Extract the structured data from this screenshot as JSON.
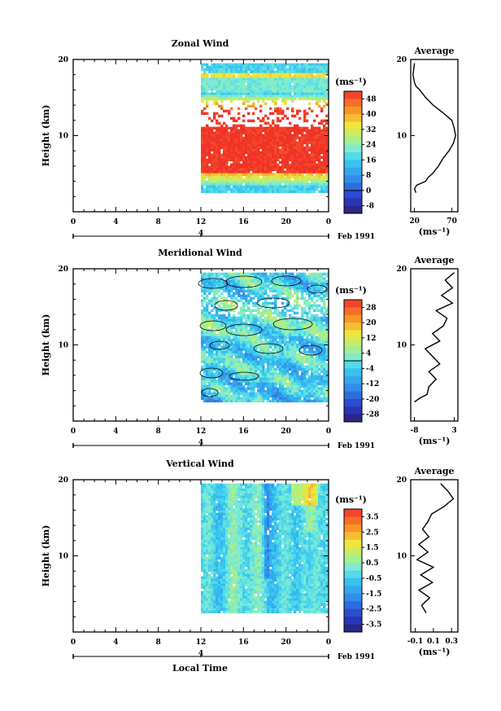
{
  "figure": {
    "xlabel": "Local Time",
    "date_label": "Feb 1991",
    "average_title": "Average"
  },
  "chart_data": [
    {
      "type": "heatmap",
      "title": "Zonal Wind",
      "ylabel": "Height (km)",
      "ylim": [
        0,
        20
      ],
      "yticks": [
        "20",
        "10"
      ],
      "xticks": [
        "0",
        "4",
        "8",
        "12",
        "16",
        "20",
        "0"
      ],
      "day_marker": "4",
      "unit": "(ms⁻¹)",
      "colorbar_ticks": [
        "48",
        "40",
        "32",
        "24",
        "16",
        "8",
        "0",
        "-8"
      ],
      "colorbar_range": [
        -12,
        52
      ],
      "data_start_hour": 12,
      "data_end_hour": 24,
      "height_range_km": [
        2.5,
        19.5
      ],
      "profile": {
        "title": "Average",
        "xlim": [
          15,
          78
        ],
        "xticks": [
          "20",
          "70"
        ],
        "xlabel": "(ms⁻¹)",
        "height": [
          2.5,
          3,
          3.5,
          4,
          4.5,
          5,
          6,
          7,
          8,
          9,
          10,
          11,
          12,
          13,
          14,
          15,
          16,
          16.5,
          17,
          18,
          19.5
        ],
        "value": [
          22,
          20,
          23,
          35,
          38,
          44,
          52,
          58,
          66,
          72,
          75,
          73,
          70,
          58,
          45,
          35,
          27,
          22,
          20,
          18,
          20
        ]
      }
    },
    {
      "type": "heatmap",
      "title": "Meridional Wind",
      "ylabel": "Height (km)",
      "ylim": [
        0,
        20
      ],
      "yticks": [
        "20",
        "10"
      ],
      "xticks": [
        "0",
        "4",
        "8",
        "12",
        "16",
        "20",
        "0"
      ],
      "day_marker": "4",
      "unit": "(ms⁻¹)",
      "colorbar_ticks": [
        "28",
        "20",
        "12",
        "4",
        "-4",
        "-12",
        "-20",
        "-28"
      ],
      "colorbar_range": [
        -32,
        32
      ],
      "data_start_hour": 12,
      "data_end_hour": 24,
      "height_range_km": [
        2.5,
        19.5
      ],
      "profile": {
        "title": "Average",
        "xlim": [
          -9,
          4
        ],
        "xticks": [
          "-8",
          "3"
        ],
        "xlabel": "(ms⁻¹)",
        "height": [
          2.5,
          3,
          3.5,
          4.5,
          5.5,
          6.5,
          7.5,
          8.5,
          9.5,
          10.5,
          11.5,
          12.5,
          13.5,
          14.5,
          15.5,
          16.5,
          17.5,
          18.5,
          19.5
        ],
        "value": [
          -8,
          -6.5,
          -4.5,
          -4,
          -2,
          -4,
          -1,
          -3,
          -5,
          -1,
          -3,
          0,
          1,
          -2,
          2.5,
          -0.5,
          2.5,
          0.5,
          3
        ]
      }
    },
    {
      "type": "heatmap",
      "title": "Vertical Wind",
      "ylabel": "Height (km)",
      "ylim": [
        0,
        20
      ],
      "yticks": [
        "20",
        "10"
      ],
      "xticks": [
        "0",
        "4",
        "8",
        "12",
        "16",
        "20",
        "0"
      ],
      "day_marker": "4",
      "unit": "(ms⁻¹)",
      "colorbar_ticks": [
        "3.5",
        "2.5",
        "1.5",
        "0.5",
        "-0.5",
        "-1.5",
        "-2.5",
        "-3.5"
      ],
      "colorbar_range": [
        -4,
        4
      ],
      "data_start_hour": 12,
      "data_end_hour": 24,
      "height_range_km": [
        2.5,
        19.5
      ],
      "profile": {
        "title": "Average",
        "xlim": [
          -0.15,
          0.37
        ],
        "xticks": [
          "-0.1",
          "0.1",
          "0.3"
        ],
        "xlabel": "(ms⁻¹)",
        "height": [
          2.5,
          3.5,
          4.5,
          5.5,
          6.5,
          7.5,
          8.5,
          9.5,
          10.5,
          11.5,
          12.5,
          13.5,
          14.5,
          15.5,
          16.5,
          17.5,
          18.5,
          19.5
        ],
        "value": [
          0.02,
          -0.03,
          0.06,
          -0.06,
          0.09,
          -0.04,
          0.1,
          -0.08,
          0.04,
          -0.06,
          0.05,
          -0.02,
          0.04,
          0.08,
          0.22,
          0.32,
          0.26,
          0.18
        ]
      }
    }
  ]
}
